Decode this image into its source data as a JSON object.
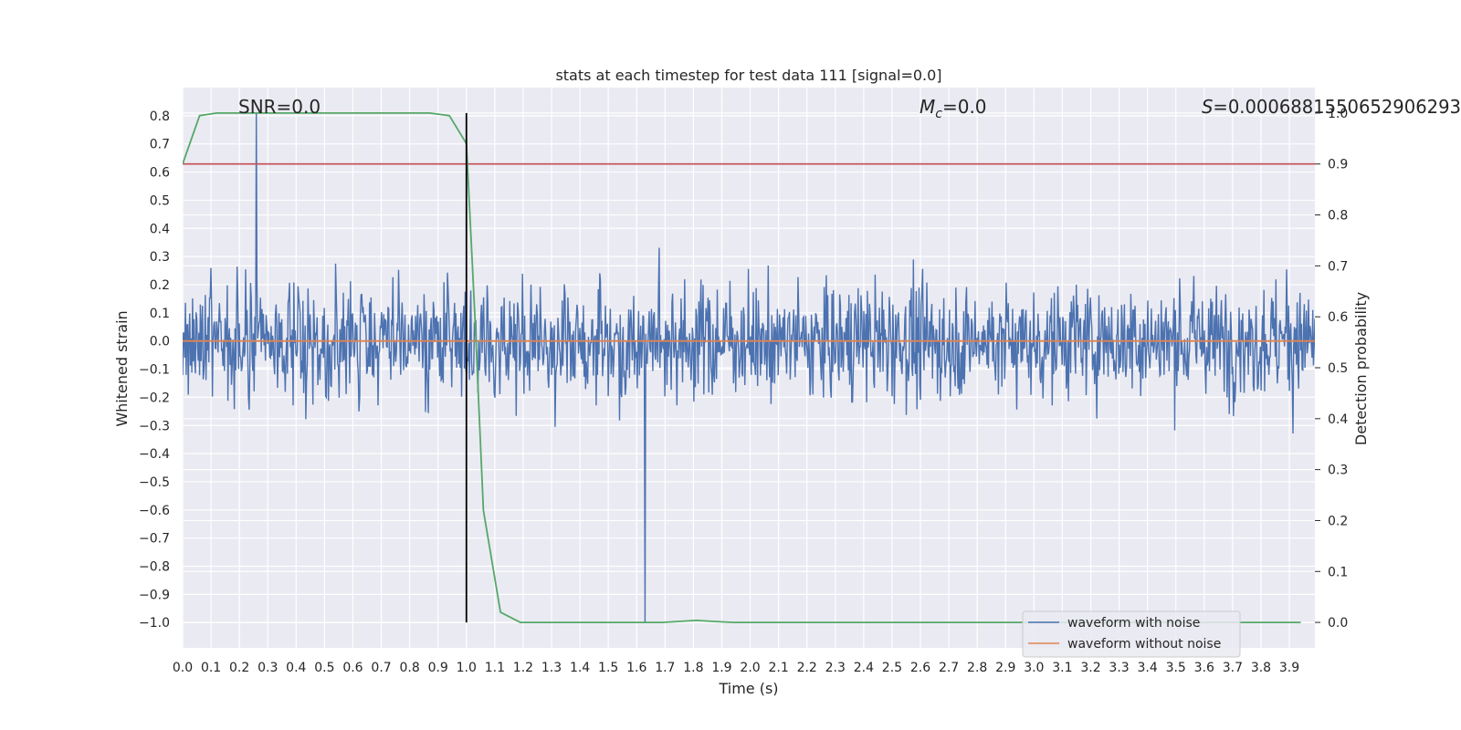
{
  "chart_data": {
    "type": "line",
    "title": "stats at each timestep for test data 111 [signal=0.0]",
    "xlabel": "Time (s)",
    "ylabel": "Whitened strain",
    "y2label": "Detection probability",
    "xlim": [
      0.0,
      3.99
    ],
    "ylim": [
      -1.09,
      0.9
    ],
    "y2lim": [
      -0.05,
      1.05
    ],
    "x_ticks": [
      "0.0",
      "0.1",
      "0.2",
      "0.3",
      "0.4",
      "0.5",
      "0.6",
      "0.7",
      "0.8",
      "0.9",
      "1.0",
      "1.1",
      "1.2",
      "1.3",
      "1.4",
      "1.5",
      "1.6",
      "1.7",
      "1.8",
      "1.9",
      "2.0",
      "2.1",
      "2.2",
      "2.3",
      "2.4",
      "2.5",
      "2.6",
      "2.7",
      "2.8",
      "2.9",
      "3.0",
      "3.1",
      "3.2",
      "3.3",
      "3.4",
      "3.5",
      "3.6",
      "3.7",
      "3.8",
      "3.9"
    ],
    "y_ticks": [
      "0.8",
      "0.7",
      "0.6",
      "0.5",
      "0.4",
      "0.3",
      "0.2",
      "0.1",
      "0.0",
      "−0.1",
      "−0.2",
      "−0.3",
      "−0.4",
      "−0.5",
      "−0.6",
      "−0.7",
      "−0.8",
      "−0.9",
      "−1.0"
    ],
    "y2_ticks": [
      "1.0",
      "0.9",
      "0.8",
      "0.7",
      "0.6",
      "0.5",
      "0.4",
      "0.3",
      "0.2",
      "0.1",
      "0.0"
    ],
    "annotations": {
      "snr": "SNR=0.0",
      "mc_symbol": "M",
      "mc_sub": "c",
      "mc_value": "=0.0",
      "s_symbol": "S",
      "s_value": "=0.0006881550652906293"
    },
    "series": [
      {
        "name": "waveform with noise",
        "color": "#4c72b0",
        "kind": "noise",
        "sample_count": 1600,
        "typical_range": [
          -0.5,
          0.5
        ],
        "max_value": 0.81,
        "min_value": -1.0
      },
      {
        "name": "waveform without noise",
        "color": "#dd8452",
        "x": [
          0.0,
          3.99
        ],
        "y": [
          0.0,
          0.0
        ]
      },
      {
        "name": "detection probability",
        "color": "#55a868",
        "axis": "right",
        "x": [
          0.0,
          0.06,
          0.12,
          0.19,
          0.25,
          0.31,
          0.37,
          0.44,
          0.5,
          0.56,
          0.62,
          0.69,
          0.75,
          0.81,
          0.87,
          0.94,
          1.0,
          1.03,
          1.06,
          1.12,
          1.19,
          1.25,
          1.31,
          1.37,
          1.44,
          1.5,
          1.56,
          1.62,
          1.69,
          1.75,
          1.81,
          1.87,
          1.94,
          2.0,
          2.5,
          3.0,
          3.5,
          3.94
        ],
        "y": [
          0.9,
          0.995,
          1.0,
          1.0,
          1.0,
          1.0,
          1.0,
          1.0,
          1.0,
          1.0,
          1.0,
          1.0,
          1.0,
          1.0,
          1.0,
          0.995,
          0.94,
          0.6,
          0.22,
          0.02,
          0.0,
          0.0,
          0.0,
          0.0,
          0.0,
          0.0,
          0.0,
          0.0,
          0.0,
          0.002,
          0.004,
          0.002,
          0.0,
          0.0,
          0.0,
          0.0,
          0.0,
          0.0
        ]
      }
    ],
    "threshold": {
      "axis": "right",
      "value": 0.9,
      "color": "#c44e52"
    },
    "vline": {
      "x": 1.0,
      "color": "#000000"
    },
    "legend": {
      "position": "lower-right",
      "entries": [
        {
          "label": "waveform with noise",
          "color": "#4c72b0"
        },
        {
          "label": "waveform without noise",
          "color": "#dd8452"
        }
      ]
    },
    "background": "#eaeaf2",
    "grid": true
  }
}
